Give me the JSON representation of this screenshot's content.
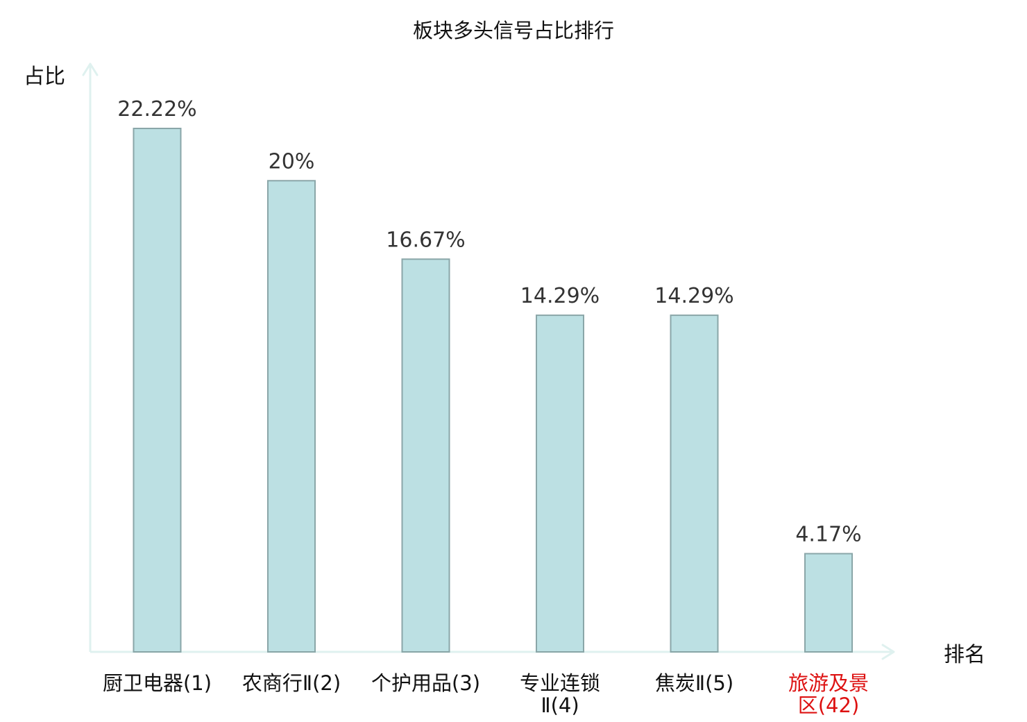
{
  "chart_data": {
    "type": "bar",
    "title": "板块多头信号占比排行",
    "ylabel": "占比",
    "xlabel": "排名",
    "categories": [
      [
        "厨卫电器(1)"
      ],
      [
        "农商行Ⅱ(2)"
      ],
      [
        "个护用品(3)"
      ],
      [
        "专业连锁",
        "Ⅱ(4)"
      ],
      [
        "焦炭Ⅱ(5)"
      ],
      [
        "旅游及景",
        "区(42)"
      ]
    ],
    "values": [
      22.22,
      20,
      16.67,
      14.29,
      14.29,
      4.17
    ],
    "value_labels": [
      "22.22%",
      "20%",
      "16.67%",
      "14.29%",
      "14.29%",
      "4.17%"
    ],
    "highlight_index": 5,
    "ylim": [
      0,
      22.22
    ],
    "grid": false,
    "colors": {
      "bar_fill": "#bce0e3",
      "bar_stroke": "#8aa6a8",
      "axis": "#dff1ef",
      "label": "#111111",
      "value_label": "#333333",
      "highlight": "#dd1111"
    }
  }
}
